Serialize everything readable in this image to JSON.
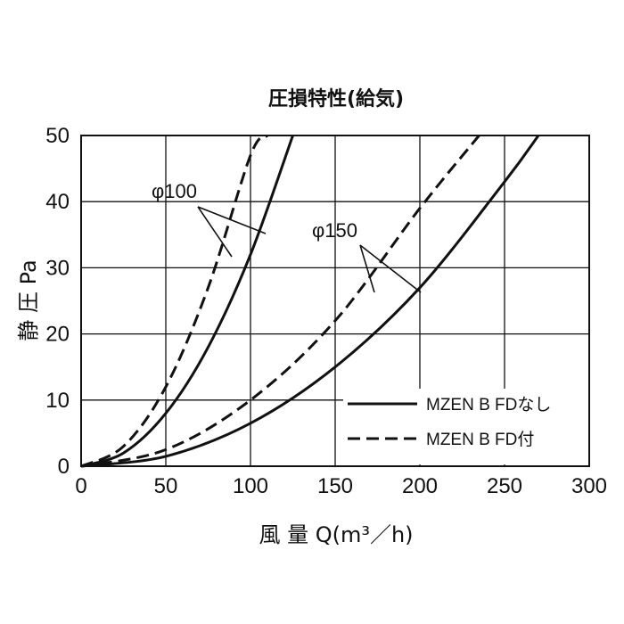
{
  "chart_data": {
    "type": "line",
    "title": "圧損特性(給気)",
    "xlabel": "風 量 Q(m³／h)",
    "ylabel": "静 圧 Pa",
    "xlim": [
      0,
      300
    ],
    "ylim": [
      0,
      50
    ],
    "xticks": [
      "0",
      "50",
      "100",
      "150",
      "200",
      "250",
      "300"
    ],
    "yticks": [
      "0",
      "10",
      "20",
      "30",
      "40",
      "50"
    ],
    "grid": true,
    "legend_position": "bottom-right",
    "legend": [
      {
        "label": "MZEN B FDなし",
        "style": "solid"
      },
      {
        "label": "MZEN B FD付",
        "style": "dashed"
      }
    ],
    "annotations": [
      {
        "text": "φ100",
        "points_to": [
          "φ100 FD付",
          "φ100 FDなし"
        ]
      },
      {
        "text": "φ150",
        "points_to": [
          "φ150 FD付",
          "φ150 FDなし"
        ]
      }
    ],
    "series": [
      {
        "group": "φ100",
        "style": "dashed",
        "x": [
          0,
          25,
          50,
          75,
          100,
          110
        ],
        "y": [
          0,
          3,
          12,
          27,
          47,
          50
        ]
      },
      {
        "group": "φ100",
        "style": "solid",
        "x": [
          0,
          25,
          50,
          75,
          100,
          125
        ],
        "y": [
          0,
          2,
          8,
          18,
          32,
          50
        ]
      },
      {
        "group": "φ150",
        "style": "dashed",
        "x": [
          0,
          50,
          100,
          150,
          200,
          235
        ],
        "y": [
          0,
          2.5,
          10,
          22,
          39,
          50
        ]
      },
      {
        "group": "φ150",
        "style": "solid",
        "x": [
          0,
          50,
          100,
          150,
          200,
          250,
          270
        ],
        "y": [
          0,
          1.5,
          6.5,
          15,
          27,
          43,
          50
        ]
      }
    ]
  }
}
